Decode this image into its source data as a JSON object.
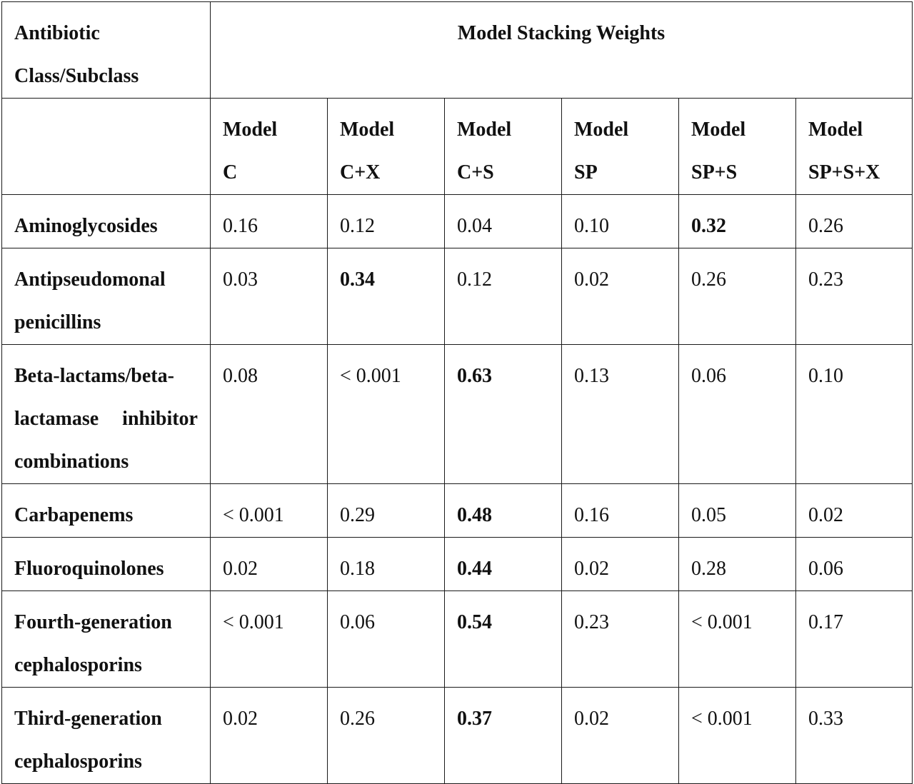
{
  "table": {
    "corner_header": "Antibiotic Class/Subclass",
    "group_header": "Model Stacking Weights",
    "columns": [
      {
        "line1": "Model",
        "line2": "C"
      },
      {
        "line1": "Model",
        "line2": "C+X"
      },
      {
        "line1": "Model",
        "line2": "C+S"
      },
      {
        "line1": "Model",
        "line2": "SP"
      },
      {
        "line1": "Model",
        "line2": "SP+S"
      },
      {
        "line1": "Model",
        "line2": "SP+S+X"
      }
    ],
    "rows": [
      {
        "label": "Aminoglycosides",
        "values": [
          "0.16",
          "0.12",
          "0.04",
          "0.10",
          "0.32",
          "0.26"
        ],
        "bold_index": 4
      },
      {
        "label": "Antipseudomonal penicillins",
        "values": [
          "0.03",
          "0.34",
          "0.12",
          "0.02",
          "0.26",
          "0.23"
        ],
        "bold_index": 1
      },
      {
        "label": "Beta-lactams/beta-lactamase inhibitor combinations",
        "values": [
          "0.08",
          "< 0.001",
          "0.63",
          "0.13",
          "0.06",
          "0.10"
        ],
        "bold_index": 2
      },
      {
        "label": "Carbapenems",
        "values": [
          "< 0.001",
          "0.29",
          "0.48",
          "0.16",
          "0.05",
          "0.02"
        ],
        "bold_index": 2
      },
      {
        "label": "Fluoroquinolones",
        "values": [
          "0.02",
          "0.18",
          "0.44",
          "0.02",
          "0.28",
          "0.06"
        ],
        "bold_index": 2
      },
      {
        "label": "Fourth-generation cephalosporins",
        "values": [
          "< 0.001",
          "0.06",
          "0.54",
          "0.23",
          "< 0.001",
          "0.17"
        ],
        "bold_index": 2
      },
      {
        "label": "Third-generation cephalosporins",
        "values": [
          "0.02",
          "0.26",
          "0.37",
          "0.02",
          "< 0.001",
          "0.33"
        ],
        "bold_index": 2
      }
    ]
  }
}
